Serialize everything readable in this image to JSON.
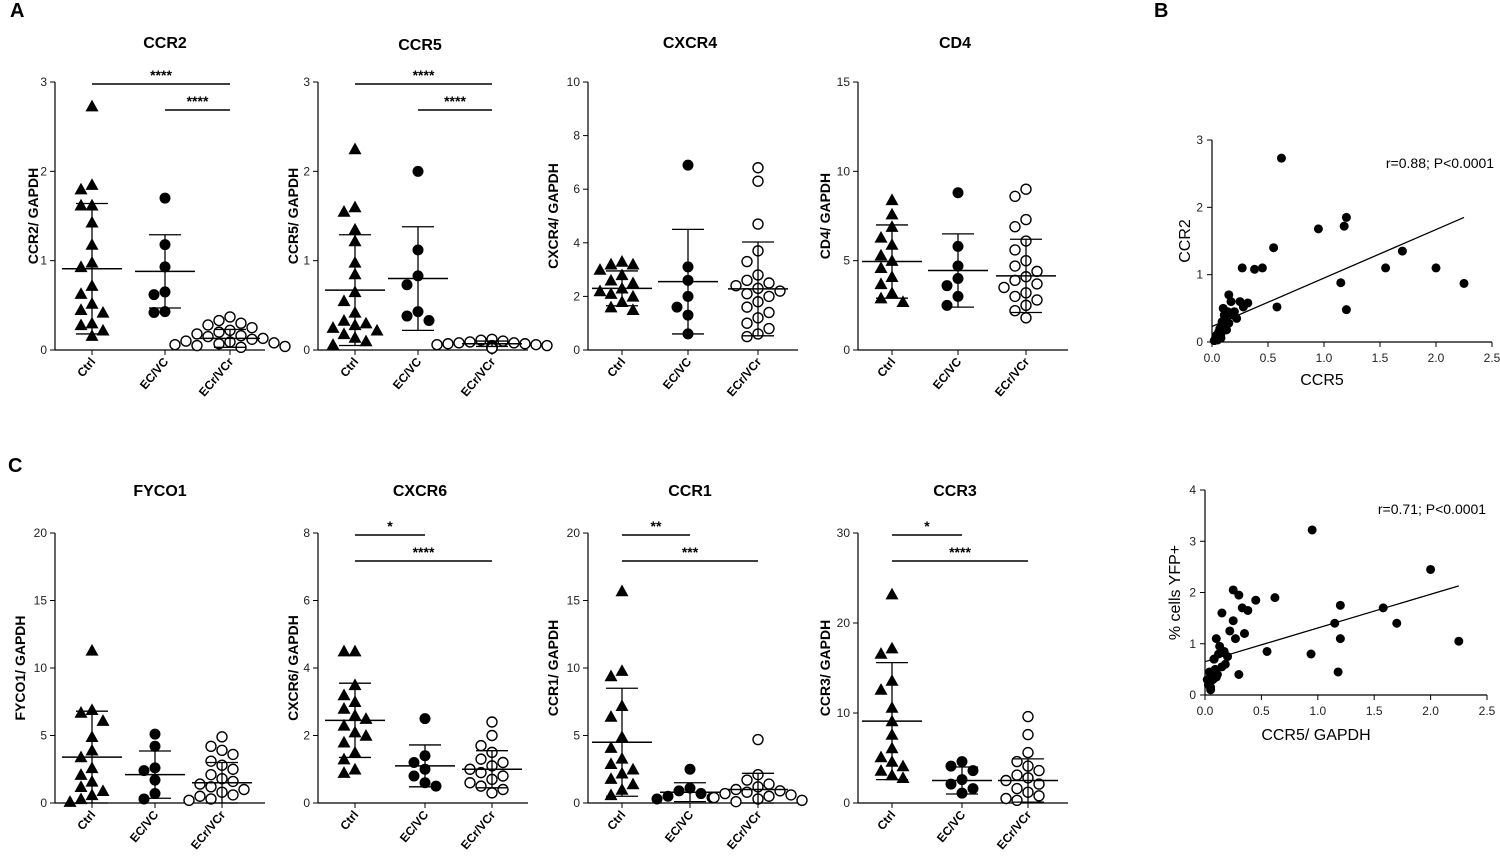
{
  "panel_labels": [
    "A",
    "B",
    "C"
  ],
  "chart_data": [
    {
      "id": "ccr2",
      "type": "scatter",
      "title": "CCR2",
      "ylabel": "CCR2/ GAPDH",
      "ylim": [
        0,
        3
      ],
      "yticks": [
        0,
        1,
        2,
        3
      ],
      "categories": [
        "Ctrl",
        "EC/VC",
        "ECr/VCr"
      ],
      "markers": [
        "triangle",
        "circle",
        "circle-open"
      ],
      "points": [
        [
          2.73,
          1.85,
          1.8,
          1.62,
          1.62,
          1.43,
          1.18,
          0.98,
          0.93,
          0.72,
          0.63,
          0.52,
          0.45,
          0.42,
          0.3,
          0.28,
          0.22,
          0.16
        ],
        [
          1.7,
          1.18,
          0.93,
          0.65,
          0.62,
          0.43,
          0.42
        ],
        [
          0.37,
          0.33,
          0.3,
          0.28,
          0.25,
          0.22,
          0.2,
          0.18,
          0.16,
          0.15,
          0.13,
          0.12,
          0.1,
          0.09,
          0.08,
          0.07,
          0.06,
          0.05,
          0.04,
          0.03
        ]
      ],
      "summary": [
        {
          "mean": 0.91,
          "sd": 0.73
        },
        {
          "mean": 0.88,
          "sd": 0.41
        },
        {
          "mean": 0.13,
          "sd": 0.1
        }
      ],
      "sig": [
        {
          "from": 0,
          "to": 2,
          "label": "****",
          "level": 0
        },
        {
          "from": 1,
          "to": 2,
          "label": "****",
          "level": 1
        }
      ]
    },
    {
      "id": "ccr5",
      "type": "scatter",
      "title": "CCR5",
      "ylabel": "CCR5/ GAPDH",
      "ylim": [
        0,
        3
      ],
      "yticks": [
        0,
        1,
        2,
        3
      ],
      "categories": [
        "Ctrl",
        "EC/VC",
        "ECr/VCr"
      ],
      "markers": [
        "triangle",
        "circle",
        "circle-open"
      ],
      "points": [
        [
          2.25,
          1.6,
          1.55,
          1.35,
          1.22,
          0.98,
          0.85,
          0.65,
          0.55,
          0.42,
          0.33,
          0.3,
          0.28,
          0.25,
          0.22,
          0.18,
          0.14,
          0.1,
          0.06
        ],
        [
          2.0,
          1.12,
          0.83,
          0.73,
          0.43,
          0.38,
          0.33
        ],
        [
          0.12,
          0.11,
          0.1,
          0.09,
          0.08,
          0.08,
          0.07,
          0.07,
          0.06,
          0.06,
          0.05,
          0.05,
          0.04,
          0.04,
          0.03,
          0.03,
          0.02,
          0.02
        ]
      ],
      "summary": [
        {
          "mean": 0.67,
          "sd": 0.62
        },
        {
          "mean": 0.8,
          "sd": 0.58
        },
        {
          "mean": 0.07,
          "sd": 0.03
        }
      ],
      "sig": [
        {
          "from": 0,
          "to": 2,
          "label": "****",
          "level": 0
        },
        {
          "from": 1,
          "to": 2,
          "label": "****",
          "level": 1
        }
      ]
    },
    {
      "id": "cxcr4",
      "type": "scatter",
      "title": "CXCR4",
      "ylabel": "CXCR4/ GAPDH",
      "ylim": [
        0,
        10
      ],
      "yticks": [
        0,
        2,
        4,
        6,
        8,
        10
      ],
      "categories": [
        "Ctrl",
        "EC/VC",
        "ECr/VCr"
      ],
      "markers": [
        "triangle",
        "circle",
        "circle-open"
      ],
      "points": [
        [
          3.3,
          3.2,
          3.2,
          3.0,
          2.8,
          2.6,
          2.5,
          2.3,
          2.2,
          2.1,
          2.0,
          1.8,
          1.6,
          1.5
        ],
        [
          6.9,
          3.1,
          2.6,
          2.0,
          1.6,
          1.3,
          0.6
        ],
        [
          6.8,
          6.3,
          4.7,
          3.7,
          3.3,
          2.8,
          2.6,
          2.5,
          2.4,
          2.3,
          2.2,
          2.1,
          2.0,
          1.8,
          1.6,
          1.4,
          1.2,
          1.0,
          0.8,
          0.6,
          0.5
        ]
      ],
      "summary": [
        {
          "mean": 2.3,
          "sd": 0.65
        },
        {
          "mean": 2.55,
          "sd": 1.95
        },
        {
          "mean": 2.28,
          "sd": 1.75
        }
      ],
      "sig": []
    },
    {
      "id": "cd4",
      "type": "scatter",
      "title": "CD4",
      "ylabel": "CD4/ GAPDH",
      "ylim": [
        0,
        15
      ],
      "yticks": [
        0,
        5,
        10,
        15
      ],
      "categories": [
        "Ctrl",
        "EC/VC",
        "ECr/VCr"
      ],
      "markers": [
        "triangle",
        "circle",
        "circle-open"
      ],
      "points": [
        [
          8.4,
          7.6,
          6.9,
          6.3,
          5.9,
          5.3,
          5.0,
          4.6,
          4.1,
          3.7,
          3.2,
          2.9,
          2.7
        ],
        [
          8.8,
          5.8,
          4.7,
          4.0,
          3.6,
          3.0,
          2.5
        ],
        [
          9.0,
          8.6,
          7.3,
          6.9,
          6.1,
          5.6,
          5.0,
          4.7,
          4.4,
          4.1,
          3.9,
          3.7,
          3.5,
          3.2,
          3.0,
          2.8,
          2.5,
          2.2,
          1.8
        ]
      ],
      "summary": [
        {
          "mean": 4.95,
          "sd": 2.05
        },
        {
          "mean": 4.45,
          "sd": 2.05
        },
        {
          "mean": 4.15,
          "sd": 2.05
        }
      ],
      "sig": []
    },
    {
      "id": "fyco1",
      "type": "scatter",
      "title": "FYCO1",
      "ylabel": "FYCO1/ GAPDH",
      "ylim": [
        0,
        20
      ],
      "yticks": [
        0,
        5,
        10,
        15,
        20
      ],
      "categories": [
        "Ctrl",
        "EC/VC",
        "ECr/VCr"
      ],
      "markers": [
        "triangle",
        "circle",
        "circle-open"
      ],
      "points": [
        [
          11.3,
          6.9,
          6.7,
          6.1,
          4.9,
          3.9,
          3.4,
          2.6,
          2.1,
          1.6,
          1.2,
          0.9,
          0.6,
          0.3,
          0.1
        ],
        [
          5.1,
          4.2,
          2.6,
          2.4,
          1.7,
          0.7,
          0.3
        ],
        [
          4.9,
          4.2,
          3.9,
          3.6,
          3.1,
          2.8,
          2.5,
          2.1,
          1.8,
          1.6,
          1.4,
          1.2,
          1.0,
          0.8,
          0.6,
          0.5,
          0.3,
          0.2
        ]
      ],
      "summary": [
        {
          "mean": 3.4,
          "sd": 3.4
        },
        {
          "mean": 2.1,
          "sd": 1.75
        },
        {
          "mean": 1.5,
          "sd": 1.5
        }
      ],
      "sig": []
    },
    {
      "id": "cxcr6",
      "type": "scatter",
      "title": "CXCR6",
      "ylabel": "CXCR6/ GAPDH",
      "ylim": [
        0,
        8
      ],
      "yticks": [
        0,
        2,
        4,
        6,
        8
      ],
      "categories": [
        "Ctrl",
        "EC/VC",
        "ECr/VCr"
      ],
      "markers": [
        "triangle",
        "circle",
        "circle-open"
      ],
      "points": [
        [
          4.5,
          4.5,
          3.5,
          3.2,
          3.0,
          2.8,
          2.6,
          2.5,
          2.3,
          2.1,
          2.0,
          1.8,
          1.5,
          1.3,
          1.0,
          0.9
        ],
        [
          2.5,
          1.4,
          1.2,
          1.0,
          0.8,
          0.6,
          0.5
        ],
        [
          2.4,
          2.0,
          1.7,
          1.5,
          1.3,
          1.2,
          1.1,
          1.0,
          0.9,
          0.8,
          0.7,
          0.6,
          0.5,
          0.4,
          0.3
        ]
      ],
      "summary": [
        {
          "mean": 2.45,
          "sd": 1.1
        },
        {
          "mean": 1.1,
          "sd": 0.62
        },
        {
          "mean": 1.0,
          "sd": 0.55
        }
      ],
      "sig": [
        {
          "from": 0,
          "to": 1,
          "label": "*",
          "level": 0
        },
        {
          "from": 0,
          "to": 2,
          "label": "****",
          "level": 1
        }
      ]
    },
    {
      "id": "ccr1",
      "type": "scatter",
      "title": "CCR1",
      "ylabel": "CCR1/ GAPDH",
      "ylim": [
        0,
        20
      ],
      "yticks": [
        0,
        5,
        10,
        15,
        20
      ],
      "categories": [
        "Ctrl",
        "EC/VC",
        "ECr/VCr"
      ],
      "markers": [
        "triangle",
        "circle",
        "circle-open"
      ],
      "points": [
        [
          15.7,
          9.8,
          9.4,
          7.2,
          6.4,
          4.9,
          4.1,
          3.3,
          2.9,
          2.5,
          2.2,
          1.8,
          1.4,
          1.0,
          0.6
        ],
        [
          2.5,
          1.1,
          0.9,
          0.7,
          0.5,
          0.4,
          0.3
        ],
        [
          4.7,
          2.1,
          1.7,
          1.4,
          1.2,
          1.0,
          0.9,
          0.8,
          0.7,
          0.6,
          0.5,
          0.4,
          0.3,
          0.2,
          0.1
        ]
      ],
      "summary": [
        {
          "mean": 4.5,
          "sd": 4.0
        },
        {
          "mean": 0.8,
          "sd": 0.7
        },
        {
          "mean": 1.0,
          "sd": 1.2
        }
      ],
      "sig": [
        {
          "from": 0,
          "to": 1,
          "label": "**",
          "level": 0
        },
        {
          "from": 0,
          "to": 2,
          "label": "***",
          "level": 1
        }
      ]
    },
    {
      "id": "ccr3",
      "type": "scatter",
      "title": "CCR3",
      "ylabel": "CCR3/ GAPDH",
      "ylim": [
        0,
        30
      ],
      "yticks": [
        0,
        10,
        20,
        30
      ],
      "categories": [
        "Ctrl",
        "EC/VC",
        "ECr/VCr"
      ],
      "markers": [
        "triangle",
        "circle",
        "circle-open"
      ],
      "points": [
        [
          23.2,
          17.2,
          16.6,
          13.6,
          12.6,
          10.6,
          9.1,
          7.6,
          6.1,
          5.1,
          4.6,
          4.1,
          3.6,
          3.1,
          2.8
        ],
        [
          4.6,
          4.1,
          3.6,
          2.6,
          2.1,
          1.6,
          1.1
        ],
        [
          9.6,
          7.6,
          5.6,
          4.6,
          4.1,
          3.6,
          3.1,
          2.8,
          2.5,
          2.1,
          1.6,
          1.2,
          0.8,
          0.5,
          0.3
        ]
      ],
      "summary": [
        {
          "mean": 9.1,
          "sd": 6.5
        },
        {
          "mean": 2.5,
          "sd": 1.5
        },
        {
          "mean": 2.5,
          "sd": 2.4
        }
      ],
      "sig": [
        {
          "from": 0,
          "to": 1,
          "label": "*",
          "level": 0
        },
        {
          "from": 0,
          "to": 2,
          "label": "****",
          "level": 1
        }
      ]
    },
    {
      "id": "corr-ccr2",
      "type": "scatter",
      "xlabel": "CCR5",
      "ylabel": "CCR2",
      "xlim": [
        0,
        2.5
      ],
      "ylim": [
        0,
        3
      ],
      "xticks": [
        "0.0",
        "0.5",
        "1.0",
        "1.5",
        "2.0",
        "2.5"
      ],
      "yticks": [
        "0",
        "1",
        "2",
        "3"
      ],
      "annotation": "r=0.88; P<0.0001",
      "fit": [
        [
          0,
          0.23
        ],
        [
          2.25,
          1.85
        ]
      ],
      "x": [
        0.02,
        0.03,
        0.04,
        0.05,
        0.06,
        0.07,
        0.08,
        0.09,
        0.1,
        0.11,
        0.12,
        0.13,
        0.14,
        0.15,
        0.17,
        0.19,
        0.22,
        0.05,
        0.08,
        0.12,
        0.15,
        0.2,
        0.25,
        0.28,
        0.32,
        0.38,
        0.45,
        0.55,
        0.62,
        0.95,
        1.15,
        1.18,
        1.2,
        1.2,
        1.55,
        1.7,
        2.0,
        2.25,
        0.1,
        0.27,
        0.58
      ],
      "y": [
        0.02,
        0.05,
        0.1,
        0.08,
        0.15,
        0.2,
        0.12,
        0.3,
        0.25,
        0.4,
        0.35,
        0.18,
        0.45,
        0.7,
        0.6,
        0.4,
        0.35,
        0.03,
        0.06,
        0.22,
        0.28,
        0.45,
        0.6,
        0.52,
        0.58,
        1.08,
        1.1,
        1.4,
        2.73,
        1.68,
        0.88,
        1.72,
        1.85,
        0.48,
        1.1,
        1.35,
        1.1,
        0.87,
        0.5,
        1.1,
        0.52
      ]
    },
    {
      "id": "corr-yfp",
      "type": "scatter",
      "xlabel": "CCR5/ GAPDH",
      "ylabel": "% cells YFP+",
      "xlim": [
        0,
        2.5
      ],
      "ylim": [
        0,
        4
      ],
      "xticks": [
        "0.0",
        "0.5",
        "1.0",
        "1.5",
        "2.0",
        "2.5"
      ],
      "yticks": [
        "0",
        "1",
        "2",
        "3",
        "4"
      ],
      "annotation": "r=0.71; P<0.0001",
      "fit": [
        [
          0,
          0.65
        ],
        [
          2.25,
          2.13
        ]
      ],
      "x": [
        0.02,
        0.03,
        0.04,
        0.05,
        0.06,
        0.07,
        0.08,
        0.09,
        0.1,
        0.11,
        0.12,
        0.13,
        0.15,
        0.17,
        0.18,
        0.2,
        0.22,
        0.25,
        0.27,
        0.3,
        0.33,
        0.35,
        0.38,
        0.45,
        0.55,
        0.62,
        0.95,
        0.94,
        1.15,
        1.18,
        1.2,
        1.2,
        1.58,
        1.7,
        2.0,
        2.25,
        0.05,
        0.1,
        0.15,
        0.25,
        0.3,
        0.08
      ],
      "y": [
        0.3,
        0.2,
        0.45,
        0.1,
        0.4,
        0.3,
        0.7,
        0.5,
        1.1,
        0.4,
        0.8,
        0.95,
        1.6,
        0.85,
        0.6,
        0.75,
        1.25,
        2.05,
        1.1,
        1.95,
        1.7,
        1.2,
        1.65,
        1.85,
        0.85,
        1.9,
        3.22,
        0.8,
        1.4,
        0.45,
        1.75,
        1.1,
        1.7,
        1.4,
        2.45,
        1.05,
        0.15,
        0.35,
        0.55,
        1.45,
        0.4,
        0.7
      ]
    }
  ]
}
